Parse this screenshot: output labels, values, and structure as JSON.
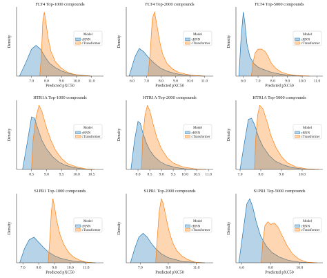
{
  "colors": {
    "cRNN": "#1f77b4",
    "cTransformer": "#ff7f0e"
  },
  "legend": {
    "title": "Model",
    "entries": [
      "cRNN",
      "cTransformer"
    ]
  },
  "chart_data": [
    {
      "type": "area",
      "title": "FLT4 Top-1000 compounds",
      "xlabel": "Predicted pXC50",
      "ylabel": "Density",
      "xlim": [
        6.0,
        11.8
      ],
      "xticks": [
        7.0,
        8.0,
        9.0,
        10.0,
        11.0
      ],
      "xtick_labels": [
        "7.0",
        "8.0",
        "9.0",
        "10.0",
        "11.0"
      ],
      "legend_position": "right",
      "series": [
        {
          "name": "cRNN",
          "x": [
            6.2,
            6.6,
            7.0,
            7.3,
            7.6,
            7.9,
            8.2,
            8.6,
            9.0,
            9.5,
            10.0,
            10.5,
            11.0
          ],
          "y": [
            0.0,
            0.2,
            0.42,
            0.48,
            0.42,
            0.3,
            0.2,
            0.13,
            0.08,
            0.04,
            0.02,
            0.01,
            0.0
          ]
        },
        {
          "name": "cTransformer",
          "x": [
            7.55,
            7.65,
            7.75,
            7.85,
            7.95,
            8.1,
            8.3,
            8.6,
            9.0,
            9.4,
            9.8,
            10.3,
            11.0
          ],
          "y": [
            0.0,
            0.3,
            0.85,
            1.0,
            0.86,
            0.6,
            0.38,
            0.22,
            0.12,
            0.06,
            0.03,
            0.01,
            0.0
          ]
        }
      ]
    },
    {
      "type": "area",
      "title": "FLT4 Top-2000 compounds",
      "xlabel": "Predicted pXC50",
      "ylabel": "Density",
      "xlim": [
        5.6,
        11.6
      ],
      "xticks": [
        6.0,
        7.0,
        8.0,
        9.0,
        10.0,
        11.0
      ],
      "xtick_labels": [
        "6.0",
        "7.0",
        "8.0",
        "9.0",
        "10.0",
        "11.0"
      ],
      "legend_position": "right",
      "series": [
        {
          "name": "cRNN",
          "x": [
            5.8,
            6.2,
            6.5,
            6.8,
            7.1,
            7.4,
            7.7,
            8.0,
            8.5,
            9.0,
            9.5,
            10.2,
            11.0
          ],
          "y": [
            0.0,
            0.3,
            0.43,
            0.38,
            0.3,
            0.23,
            0.17,
            0.12,
            0.07,
            0.04,
            0.02,
            0.01,
            0.0
          ]
        },
        {
          "name": "cTransformer",
          "x": [
            7.1,
            7.25,
            7.4,
            7.55,
            7.7,
            7.9,
            8.1,
            8.4,
            8.8,
            9.2,
            9.7,
            10.2,
            11.0
          ],
          "y": [
            0.0,
            0.35,
            0.9,
            1.0,
            0.82,
            0.55,
            0.35,
            0.2,
            0.11,
            0.06,
            0.03,
            0.01,
            0.0
          ]
        }
      ]
    },
    {
      "type": "area",
      "title": "FLT4 Top-5000 compounds",
      "xlabel": "Predicted pXC50",
      "ylabel": "Density",
      "xlim": [
        5.5,
        11.4
      ],
      "xticks": [
        6.0,
        7.0,
        8.0,
        9.0,
        10.0,
        11.0
      ],
      "xtick_labels": [
        "6.0",
        "7.0",
        "8.0",
        "9.0",
        "10.0",
        "11.0"
      ],
      "legend_position": "right",
      "series": [
        {
          "name": "cRNN",
          "x": [
            5.7,
            5.85,
            6.0,
            6.1,
            6.25,
            6.45,
            6.7,
            7.0,
            7.4,
            7.9,
            8.5,
            9.2,
            10.0
          ],
          "y": [
            0.0,
            0.6,
            1.0,
            0.85,
            0.5,
            0.3,
            0.2,
            0.14,
            0.1,
            0.06,
            0.03,
            0.01,
            0.0
          ]
        },
        {
          "name": "cTransformer",
          "x": [
            6.55,
            6.65,
            6.8,
            7.0,
            7.25,
            7.5,
            7.7,
            7.9,
            8.2,
            8.6,
            9.0,
            9.6,
            10.5
          ],
          "y": [
            0.0,
            0.2,
            0.36,
            0.42,
            0.42,
            0.38,
            0.3,
            0.2,
            0.12,
            0.06,
            0.03,
            0.01,
            0.0
          ]
        }
      ]
    },
    {
      "type": "area",
      "title": "HTR1A Top-1000 compounds",
      "xlabel": "",
      "ylabel": "Density",
      "xlim": [
        8.0,
        10.9
      ],
      "xticks": [
        8.5,
        9.0,
        9.5,
        10.0,
        10.5
      ],
      "xtick_labels": [
        "8.5",
        "9.0",
        "9.5",
        "10.0",
        "10.5"
      ],
      "legend_position": "right",
      "series": [
        {
          "name": "cRNN",
          "x": [
            8.2,
            8.35,
            8.5,
            8.6,
            8.7,
            8.85,
            9.0,
            9.2,
            9.4,
            9.6,
            9.9,
            10.2,
            10.5
          ],
          "y": [
            0.0,
            0.4,
            0.82,
            0.8,
            0.65,
            0.45,
            0.32,
            0.2,
            0.12,
            0.07,
            0.03,
            0.01,
            0.0
          ]
        },
        {
          "name": "cTransformer",
          "x": [
            8.5,
            8.55,
            8.65,
            8.75,
            8.85,
            9.0,
            9.15,
            9.3,
            9.5,
            9.7,
            10.0,
            10.3,
            10.6
          ],
          "y": [
            0.0,
            0.45,
            0.82,
            1.0,
            0.9,
            0.65,
            0.45,
            0.3,
            0.17,
            0.09,
            0.04,
            0.01,
            0.0
          ]
        }
      ]
    },
    {
      "type": "area",
      "title": "HTR1A Top-2000 compounds",
      "xlabel": "",
      "ylabel": "Density",
      "xlim": [
        7.5,
        11.2
      ],
      "xticks": [
        8.0,
        8.5,
        9.0,
        9.5,
        10.0,
        10.5,
        11.0
      ],
      "xtick_labels": [
        "8.0",
        "8.5",
        "9.0",
        "9.5",
        "10.0",
        "10.5",
        "11.0"
      ],
      "legend_position": "right",
      "series": [
        {
          "name": "cRNN",
          "x": [
            7.7,
            7.85,
            8.0,
            8.1,
            8.2,
            8.35,
            8.5,
            8.7,
            8.95,
            9.2,
            9.6,
            10.0,
            10.5
          ],
          "y": [
            0.0,
            0.45,
            0.75,
            0.72,
            0.58,
            0.42,
            0.3,
            0.2,
            0.12,
            0.07,
            0.03,
            0.01,
            0.0
          ]
        },
        {
          "name": "cTransformer",
          "x": [
            8.15,
            8.2,
            8.3,
            8.4,
            8.5,
            8.65,
            8.8,
            9.0,
            9.25,
            9.5,
            9.9,
            10.4,
            10.9
          ],
          "y": [
            0.0,
            0.5,
            0.85,
            1.0,
            0.92,
            0.7,
            0.5,
            0.32,
            0.18,
            0.1,
            0.04,
            0.01,
            0.0
          ]
        }
      ]
    },
    {
      "type": "area",
      "title": "HTR1A Top-5000 compounds",
      "xlabel": "",
      "ylabel": "Density",
      "xlim": [
        6.8,
        11.0
      ],
      "xticks": [
        7.0,
        8.0,
        9.0,
        10.0
      ],
      "xtick_labels": [
        "7.0",
        "8.0",
        "9.0",
        "10.0"
      ],
      "legend_position": "right",
      "series": [
        {
          "name": "cRNN",
          "x": [
            7.0,
            7.2,
            7.4,
            7.55,
            7.7,
            7.9,
            8.1,
            8.4,
            8.7,
            9.1,
            9.5,
            10.0,
            10.6
          ],
          "y": [
            0.0,
            0.4,
            0.78,
            0.8,
            0.7,
            0.5,
            0.36,
            0.22,
            0.13,
            0.07,
            0.03,
            0.01,
            0.0
          ]
        },
        {
          "name": "cTransformer",
          "x": [
            7.7,
            7.75,
            7.85,
            7.95,
            8.1,
            8.3,
            8.5,
            8.75,
            9.0,
            9.3,
            9.7,
            10.2,
            10.8
          ],
          "y": [
            0.0,
            0.45,
            0.85,
            1.0,
            0.95,
            0.75,
            0.52,
            0.33,
            0.2,
            0.1,
            0.04,
            0.01,
            0.0
          ]
        }
      ]
    },
    {
      "type": "area",
      "title": "S1PR1 Top-1000 compounds",
      "xlabel": "Predicted pXC50",
      "ylabel": "Density",
      "xlim": [
        6.6,
        12.1
      ],
      "xticks": [
        7.0,
        8.0,
        9.0,
        10.0,
        11.0
      ],
      "xtick_labels": [
        "7.0",
        "8.0",
        "9.0",
        "10.0",
        "11.0"
      ],
      "legend_position": "right",
      "series": [
        {
          "name": "cRNN",
          "x": [
            6.8,
            7.1,
            7.4,
            7.7,
            8.0,
            8.3,
            8.6,
            9.0,
            9.4,
            9.9,
            10.4,
            11.0,
            11.6
          ],
          "y": [
            0.0,
            0.22,
            0.36,
            0.4,
            0.32,
            0.24,
            0.17,
            0.11,
            0.07,
            0.04,
            0.02,
            0.01,
            0.0
          ]
        },
        {
          "name": "cTransformer",
          "x": [
            8.6,
            8.7,
            8.8,
            8.9,
            9.0,
            9.15,
            9.35,
            9.6,
            9.9,
            10.2,
            10.6,
            11.0,
            11.5
          ],
          "y": [
            0.0,
            0.35,
            0.8,
            1.0,
            0.88,
            0.65,
            0.44,
            0.28,
            0.16,
            0.09,
            0.04,
            0.01,
            0.0
          ]
        }
      ]
    },
    {
      "type": "area",
      "title": "S1PR1 Top-2000 compounds",
      "xlabel": "Predicted pXC50",
      "ylabel": "Density",
      "xlim": [
        6.0,
        12.2
      ],
      "xticks": [
        7.0,
        9.0,
        11.0
      ],
      "xtick_labels": [
        "7.0",
        "9.0",
        "11.0"
      ],
      "legend_position": "right",
      "series": [
        {
          "name": "cRNN",
          "x": [
            6.3,
            6.6,
            6.9,
            7.2,
            7.5,
            7.8,
            8.1,
            8.5,
            9.0,
            9.5,
            10.0,
            10.8,
            11.6
          ],
          "y": [
            0.0,
            0.22,
            0.4,
            0.46,
            0.4,
            0.3,
            0.22,
            0.14,
            0.08,
            0.05,
            0.02,
            0.01,
            0.0
          ]
        },
        {
          "name": "cTransformer",
          "x": [
            8.1,
            8.2,
            8.35,
            8.5,
            8.65,
            8.85,
            9.05,
            9.3,
            9.6,
            10.0,
            10.4,
            10.9,
            11.5
          ],
          "y": [
            0.0,
            0.35,
            0.8,
            1.0,
            0.92,
            0.7,
            0.5,
            0.32,
            0.19,
            0.1,
            0.05,
            0.01,
            0.0
          ]
        }
      ]
    },
    {
      "type": "area",
      "title": "S1PR1 Top-5000 compounds",
      "xlabel": "Predicted pXC50",
      "ylabel": "Density",
      "xlim": [
        5.6,
        11.6
      ],
      "xticks": [
        6.0,
        8.0,
        10.0
      ],
      "xtick_labels": [
        "6.0",
        "8.0",
        "10.0"
      ],
      "legend_position": "right",
      "series": [
        {
          "name": "cRNN",
          "x": [
            5.8,
            6.1,
            6.35,
            6.55,
            6.75,
            7.0,
            7.3,
            7.7,
            8.1,
            8.6,
            9.2,
            10.0,
            11.0
          ],
          "y": [
            0.0,
            0.5,
            0.92,
            1.0,
            0.88,
            0.64,
            0.42,
            0.26,
            0.16,
            0.09,
            0.04,
            0.01,
            0.0
          ]
        },
        {
          "name": "cTransformer",
          "x": [
            7.35,
            7.45,
            7.6,
            7.8,
            8.0,
            8.25,
            8.5,
            8.8,
            9.1,
            9.5,
            10.0,
            10.5,
            11.2
          ],
          "y": [
            0.0,
            0.32,
            0.58,
            0.64,
            0.6,
            0.62,
            0.56,
            0.42,
            0.28,
            0.14,
            0.05,
            0.01,
            0.0
          ]
        }
      ]
    }
  ]
}
